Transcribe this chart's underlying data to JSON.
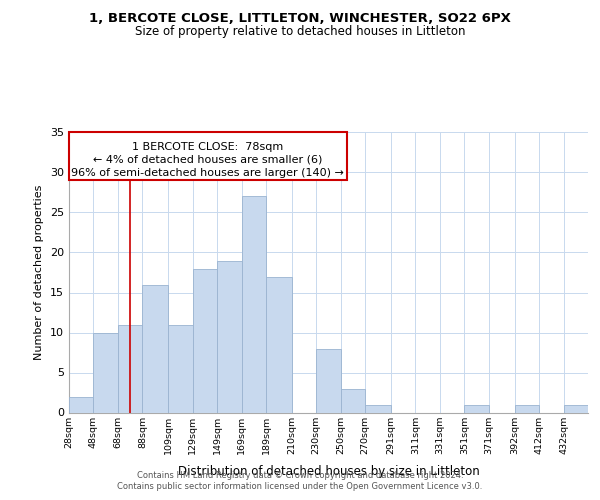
{
  "title1": "1, BERCOTE CLOSE, LITTLETON, WINCHESTER, SO22 6PX",
  "title2": "Size of property relative to detached houses in Littleton",
  "xlabel": "Distribution of detached houses by size in Littleton",
  "ylabel": "Number of detached properties",
  "bin_labels": [
    "28sqm",
    "48sqm",
    "68sqm",
    "88sqm",
    "109sqm",
    "129sqm",
    "149sqm",
    "169sqm",
    "189sqm",
    "210sqm",
    "230sqm",
    "250sqm",
    "270sqm",
    "291sqm",
    "311sqm",
    "331sqm",
    "351sqm",
    "371sqm",
    "392sqm",
    "412sqm",
    "432sqm"
  ],
  "bar_heights": [
    2,
    10,
    11,
    16,
    11,
    18,
    19,
    27,
    17,
    0,
    8,
    3,
    1,
    0,
    0,
    0,
    1,
    0,
    1,
    0,
    1
  ],
  "bar_color": "#c8d9ee",
  "bar_edge_color": "#9ab3d0",
  "reference_line_x": 78,
  "xlim_min": 28,
  "xlim_max": 452,
  "ylim_max": 35,
  "yticks": [
    0,
    5,
    10,
    15,
    20,
    25,
    30,
    35
  ],
  "annotation_title": "1 BERCOTE CLOSE:  78sqm",
  "annotation_line1": "← 4% of detached houses are smaller (6)",
  "annotation_line2": "96% of semi-detached houses are larger (140) →",
  "bin_edges": [
    28,
    48,
    68,
    88,
    109,
    129,
    149,
    169,
    189,
    210,
    230,
    250,
    270,
    291,
    311,
    331,
    351,
    371,
    392,
    412,
    432,
    452
  ],
  "footer1": "Contains HM Land Registry data © Crown copyright and database right 2024.",
  "footer2": "Contains public sector information licensed under the Open Government Licence v3.0."
}
